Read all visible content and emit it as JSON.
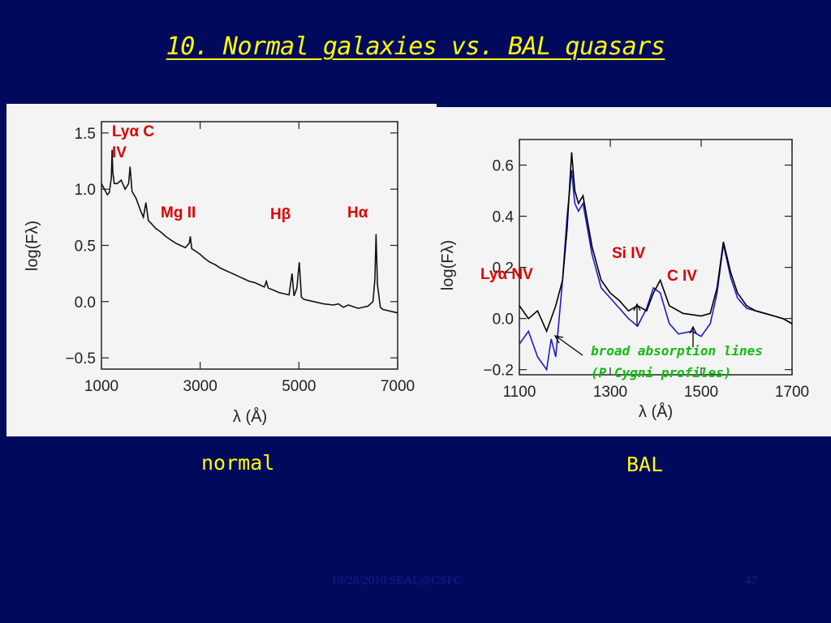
{
  "slide": {
    "title": "10. Normal galaxies vs. BAL quasars",
    "footer_left": "10/28/2010 SEAL@GSFC",
    "footer_right": "47"
  },
  "captions": {
    "left": "normal",
    "right": "BAL"
  },
  "chart_data": [
    {
      "type": "line",
      "caption": "normal",
      "xlabel": "λ (Å)",
      "ylabel": "log(Fλ)",
      "xlim": [
        1000,
        7000
      ],
      "ylim": [
        -0.6,
        1.6
      ],
      "xticks": [
        1000,
        3000,
        5000,
        7000
      ],
      "yticks": [
        -0.5,
        0.0,
        0.5,
        1.0,
        1.5
      ],
      "grid": false,
      "series": [
        {
          "color": "#111111",
          "x": [
            1000,
            1060,
            1120,
            1160,
            1200,
            1215,
            1230,
            1260,
            1320,
            1400,
            1480,
            1550,
            1580,
            1620,
            1700,
            1800,
            1850,
            1900,
            1950,
            2000,
            2100,
            2200,
            2300,
            2400,
            2500,
            2600,
            2700,
            2780,
            2800,
            2830,
            2900,
            3000,
            3100,
            3200,
            3300,
            3400,
            3500,
            3600,
            3700,
            3800,
            3900,
            4000,
            4100,
            4200,
            4300,
            4340,
            4380,
            4500,
            4600,
            4700,
            4800,
            4861,
            4900,
            4959,
            5007,
            5050,
            5100,
            5300,
            5500,
            5700,
            5800,
            5900,
            6000,
            6200,
            6400,
            6500,
            6540,
            6563,
            6590,
            6650,
            6700,
            6800,
            6900,
            7000
          ],
          "y": [
            1.05,
            1.0,
            0.95,
            0.97,
            1.1,
            1.35,
            1.15,
            1.05,
            1.05,
            1.08,
            1.0,
            1.05,
            1.2,
            0.98,
            0.92,
            0.8,
            0.75,
            0.88,
            0.72,
            0.7,
            0.65,
            0.62,
            0.58,
            0.55,
            0.52,
            0.5,
            0.48,
            0.52,
            0.58,
            0.47,
            0.45,
            0.42,
            0.38,
            0.35,
            0.33,
            0.3,
            0.28,
            0.26,
            0.24,
            0.22,
            0.2,
            0.18,
            0.17,
            0.15,
            0.13,
            0.18,
            0.12,
            0.1,
            0.08,
            0.07,
            0.06,
            0.25,
            0.05,
            0.12,
            0.35,
            0.04,
            0.02,
            0.0,
            -0.02,
            -0.03,
            -0.02,
            -0.05,
            -0.03,
            -0.06,
            -0.04,
            0.0,
            0.2,
            0.6,
            0.15,
            -0.05,
            -0.07,
            -0.08,
            -0.09,
            -0.1
          ]
        }
      ],
      "annotations": [
        "Lyα C",
        "IV",
        "Mg II",
        "Hβ",
        "Hα"
      ]
    },
    {
      "type": "line",
      "caption": "BAL",
      "xlabel": "λ (Å)",
      "ylabel": "log(Fλ)",
      "xlim": [
        1100,
        1700
      ],
      "ylim": [
        -0.22,
        0.7
      ],
      "xticks": [
        1100,
        1300,
        1500,
        1700
      ],
      "yticks": [
        -0.2,
        0.0,
        0.2,
        0.4,
        0.6
      ],
      "grid": false,
      "series": [
        {
          "color": "#000000",
          "x": [
            1100,
            1120,
            1140,
            1160,
            1180,
            1195,
            1205,
            1215,
            1222,
            1230,
            1240,
            1260,
            1280,
            1300,
            1320,
            1340,
            1360,
            1380,
            1395,
            1410,
            1430,
            1460,
            1500,
            1520,
            1535,
            1549,
            1565,
            1580,
            1600,
            1620,
            1640,
            1660,
            1680,
            1700
          ],
          "y": [
            0.05,
            0.0,
            0.03,
            -0.05,
            0.05,
            0.15,
            0.35,
            0.65,
            0.5,
            0.45,
            0.48,
            0.28,
            0.15,
            0.1,
            0.07,
            0.03,
            0.05,
            0.03,
            0.1,
            0.15,
            0.05,
            0.02,
            0.01,
            0.02,
            0.12,
            0.3,
            0.18,
            0.1,
            0.05,
            0.03,
            0.02,
            0.01,
            0.0,
            -0.02
          ]
        },
        {
          "color": "#1a1acc",
          "x": [
            1100,
            1120,
            1140,
            1160,
            1170,
            1180,
            1195,
            1205,
            1215,
            1222,
            1230,
            1240,
            1260,
            1280,
            1300,
            1320,
            1340,
            1360,
            1380,
            1395,
            1410,
            1430,
            1450,
            1480,
            1500,
            1520,
            1535,
            1549,
            1565,
            1580,
            1600,
            1620,
            1640,
            1660,
            1680,
            1700
          ],
          "y": [
            -0.1,
            -0.05,
            -0.15,
            -0.2,
            -0.08,
            -0.15,
            0.15,
            0.4,
            0.58,
            0.45,
            0.42,
            0.45,
            0.25,
            0.12,
            0.08,
            0.04,
            0.0,
            -0.03,
            0.04,
            0.12,
            0.1,
            -0.02,
            -0.06,
            -0.05,
            -0.07,
            -0.02,
            0.1,
            0.29,
            0.16,
            0.08,
            0.04,
            0.03,
            0.02,
            0.01,
            0.0,
            -0.02
          ]
        }
      ],
      "annotations": [
        "Si IV",
        "Lyα NV",
        "C IV",
        "broad absorption lines",
        "(P Cygni profiles)"
      ]
    }
  ]
}
